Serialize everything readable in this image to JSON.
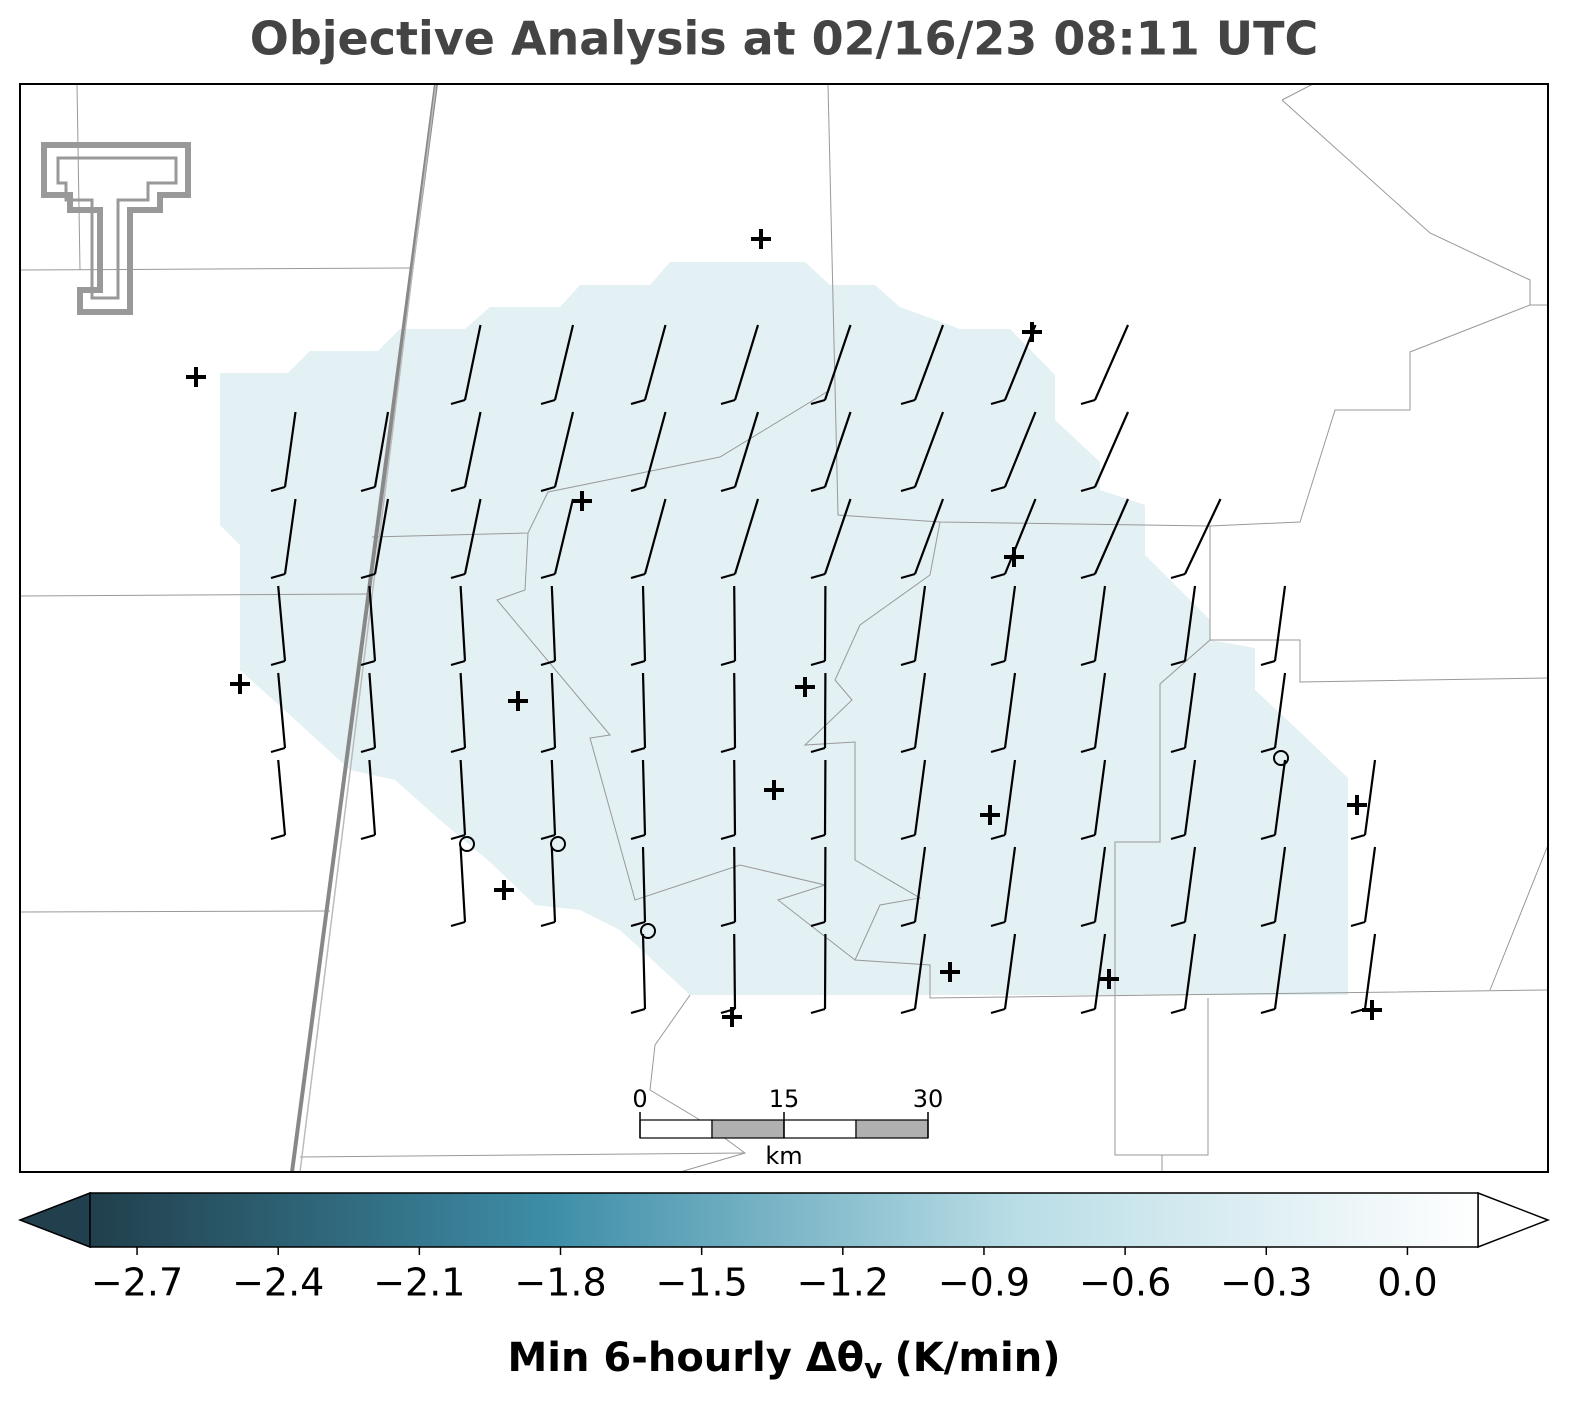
{
  "title": "Objective Analysis at 02/16/23 08:11 UTC",
  "colorbar": {
    "label": "Min 6-hourly Δθ",
    "label_subscript": "v",
    "label_suffix": "(K/min)",
    "range": [
      -2.8,
      0.15
    ],
    "colormap": [
      "#213f4c",
      "#3e8ea8",
      "#b9dde6",
      "#ffffff"
    ],
    "ticks": [
      {
        "value": -2.7,
        "label": "−2.7"
      },
      {
        "value": -2.4,
        "label": "−2.4"
      },
      {
        "value": -2.1,
        "label": "−2.1"
      },
      {
        "value": -1.8,
        "label": "−1.8"
      },
      {
        "value": -1.5,
        "label": "−1.5"
      },
      {
        "value": -1.2,
        "label": "−1.2"
      },
      {
        "value": -0.9,
        "label": "−0.9"
      },
      {
        "value": -0.6,
        "label": "−0.6"
      },
      {
        "value": -0.3,
        "label": "−0.3"
      },
      {
        "value": 0.0,
        "label": "0.0"
      }
    ]
  },
  "scale_bar": {
    "ticks": [
      0,
      15,
      30
    ],
    "unit": "km"
  }
}
